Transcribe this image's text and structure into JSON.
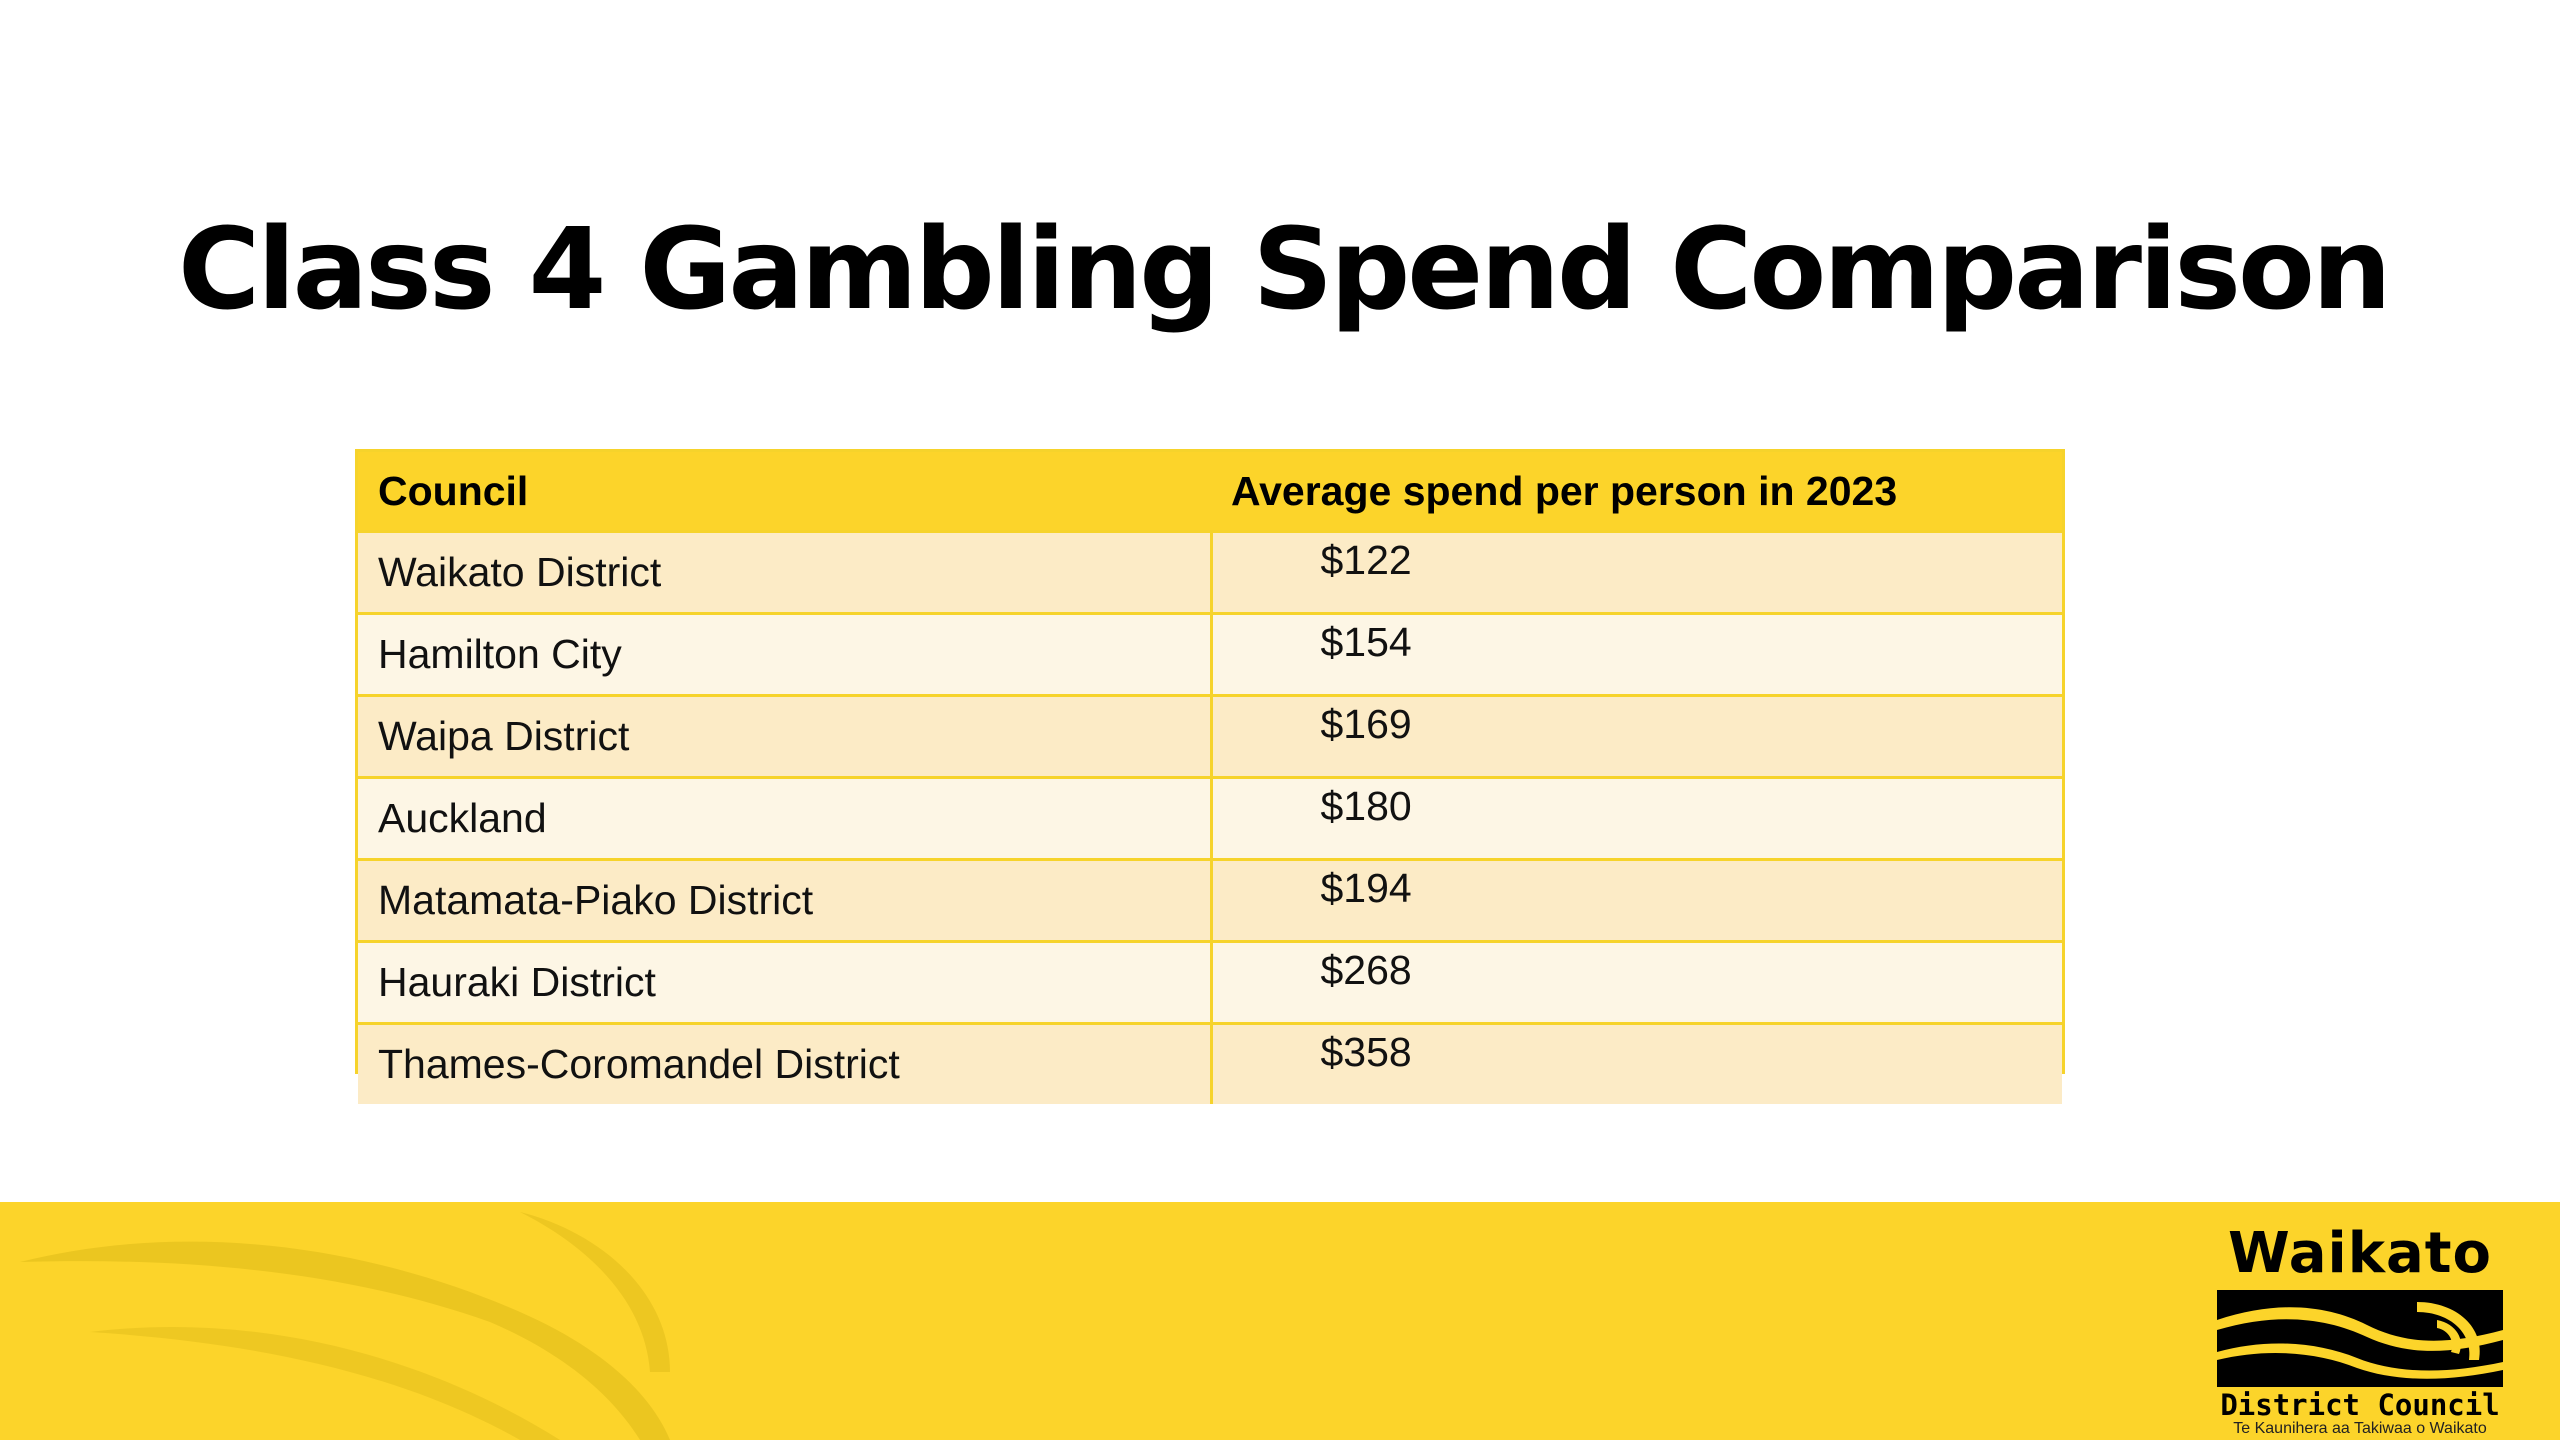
{
  "slide": {
    "title": "Class 4 Gambling Spend Comparison"
  },
  "table": {
    "headers": {
      "council": "Council",
      "spend": "Average spend per person in 2023"
    },
    "rows": [
      {
        "council": "Waikato District",
        "spend": "$122"
      },
      {
        "council": "Hamilton City",
        "spend": "$154"
      },
      {
        "council": "Waipa District",
        "spend": "$169"
      },
      {
        "council": "Auckland",
        "spend": "$180"
      },
      {
        "council": "Matamata-Piako District",
        "spend": "$194"
      },
      {
        "council": "Hauraki District",
        "spend": "$268"
      },
      {
        "council": "Thames-Coromandel District",
        "spend": "$358"
      }
    ]
  },
  "footer": {
    "logo": {
      "name": "Waikato",
      "council": "District Council",
      "tagline": "Te Kaunihera aa Takiwaa o Waikato",
      "emblem_icon": "waikato-river-emblem-icon"
    }
  },
  "colors": {
    "accent_yellow": "#fcd42a",
    "row_dark": "#fcebc6",
    "row_light": "#fdf6e5",
    "border": "#f6d32b"
  }
}
